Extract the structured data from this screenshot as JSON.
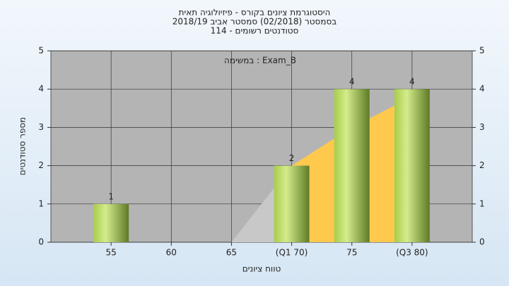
{
  "chart_data": {
    "type": "bar",
    "title": "היסטוגרמת ציונים בקורס - פיזיולוגיה תאית",
    "subtitle": "בסמסטר  (02/2018)  סמסטר אביב 2018/19",
    "subtitle2": "סטודנטים רשומים - 114",
    "annotation": "במשימה : Exam_B",
    "x_label": "טווח ציונים",
    "y_label": "מספר סטודנטים",
    "categories": [
      "55",
      "60",
      "65",
      "(Q1 70)",
      "75",
      "(Q3 80)"
    ],
    "values": [
      1,
      0,
      0,
      2,
      4,
      4
    ],
    "color": "#8fb83a",
    "area": {
      "values": [
        null,
        null,
        0,
        2,
        3,
        3.8
      ],
      "color": "#ffc94d",
      "first_color": "#c8c8c8"
    },
    "ylim": [
      0,
      5
    ],
    "yticks": [
      0,
      1,
      2,
      3,
      4,
      5
    ],
    "y2lim": [
      0,
      5
    ],
    "y2ticks": [
      0,
      1,
      2,
      3,
      4,
      5
    ],
    "grid": true
  }
}
